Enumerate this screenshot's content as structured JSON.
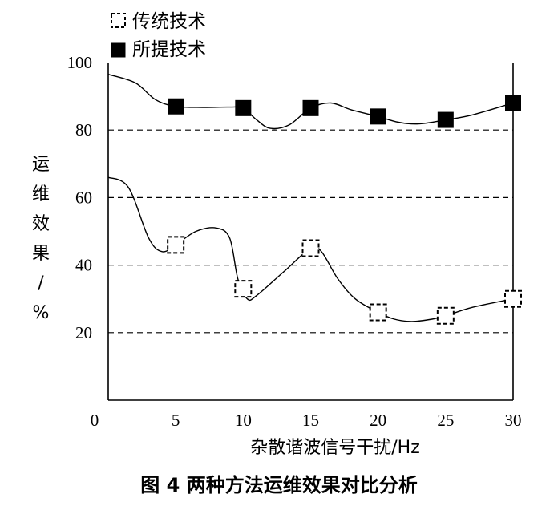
{
  "caption": "图 4  两种方法运维效果对比分析",
  "chart_data": {
    "type": "line",
    "title": "",
    "xlabel": "杂散谐波信号干扰/Hz",
    "ylabel": "运维效果/%",
    "ylabel_chars": [
      "运",
      "维",
      "效",
      "果",
      "/",
      "%"
    ],
    "xlim": [
      0,
      30
    ],
    "ylim": [
      0,
      100
    ],
    "x_ticks": [
      "0",
      "5",
      "10",
      "15",
      "20",
      "25",
      "30"
    ],
    "y_ticks": [
      "20",
      "40",
      "60",
      "80",
      "100"
    ],
    "gridlines_dashed_at": [
      20,
      40,
      60,
      80
    ],
    "legend_position": "top-left",
    "series": [
      {
        "name": "传统技术",
        "marker": "hollow-dashed-square",
        "color": "#000000",
        "x": [
          5,
          10,
          15,
          20,
          25,
          30
        ],
        "y": [
          46,
          33,
          45,
          26,
          25,
          30
        ],
        "curve": [
          [
            0,
            66
          ],
          [
            1.5,
            63
          ],
          [
            3,
            48
          ],
          [
            4,
            44
          ],
          [
            5,
            46
          ],
          [
            6.5,
            50
          ],
          [
            8,
            51
          ],
          [
            9,
            48
          ],
          [
            9.6,
            36
          ],
          [
            10.3,
            30
          ],
          [
            11,
            31
          ],
          [
            13,
            38
          ],
          [
            15,
            45
          ],
          [
            15.8,
            44
          ],
          [
            17,
            36
          ],
          [
            18.3,
            30
          ],
          [
            20,
            26
          ],
          [
            21.2,
            24
          ],
          [
            22.5,
            23.3
          ],
          [
            24,
            24
          ],
          [
            25,
            25
          ],
          [
            27,
            27.5
          ],
          [
            30,
            30
          ]
        ]
      },
      {
        "name": "所提技术",
        "marker": "filled-square",
        "color": "#000000",
        "x": [
          5,
          10,
          15,
          20,
          25,
          30
        ],
        "y": [
          87,
          86.5,
          86.5,
          84,
          83,
          88
        ],
        "curve": [
          [
            0,
            96.5
          ],
          [
            2,
            94
          ],
          [
            3.5,
            89
          ],
          [
            5,
            87
          ],
          [
            7,
            86.7
          ],
          [
            9,
            86.8
          ],
          [
            10,
            86.5
          ],
          [
            11,
            83
          ],
          [
            12,
            80.5
          ],
          [
            13.4,
            81.5
          ],
          [
            15,
            86.5
          ],
          [
            16.5,
            88
          ],
          [
            18,
            86
          ],
          [
            20,
            84
          ],
          [
            21.5,
            82.3
          ],
          [
            23,
            81.8
          ],
          [
            25,
            83
          ],
          [
            27,
            84.5
          ],
          [
            30,
            88
          ]
        ]
      }
    ]
  }
}
